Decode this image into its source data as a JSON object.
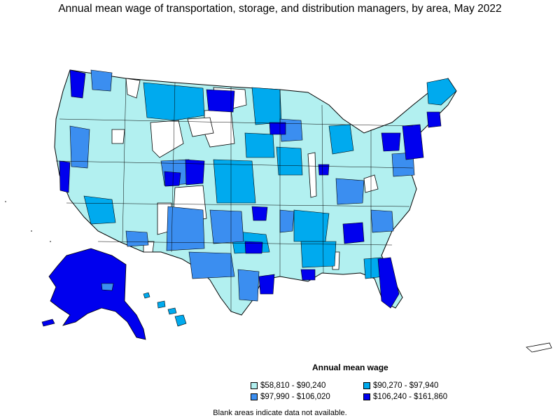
{
  "title": "Annual mean wage of transportation, storage, and distribution managers, by area, May 2022",
  "legend": {
    "title": "Annual mean wage",
    "items": [
      {
        "label": "$58,810 - $90,240",
        "color": "#b2f0f0"
      },
      {
        "label": "$90,270 - $97,940",
        "color": "#00aaee"
      },
      {
        "label": "$97,990 - $106,020",
        "color": "#3b8ef0"
      },
      {
        "label": "$106,240 - $161,860",
        "color": "#0000ee"
      }
    ]
  },
  "footnote": "Blank areas indicate data not available.",
  "colors": {
    "tier1": "#b2f0f0",
    "tier2": "#00aaee",
    "tier3": "#3b8ef0",
    "tier4": "#0000ee",
    "blank": "#ffffff",
    "border": "#000000"
  }
}
